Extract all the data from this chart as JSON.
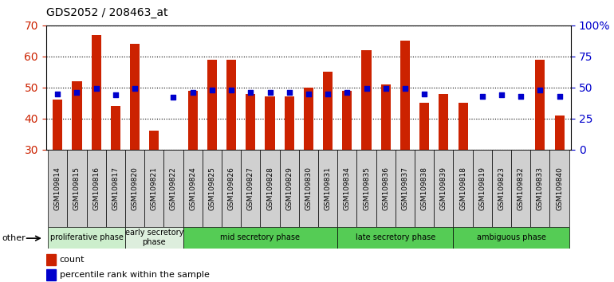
{
  "title": "GDS2052 / 208463_at",
  "samples": [
    "GSM109814",
    "GSM109815",
    "GSM109816",
    "GSM109817",
    "GSM109820",
    "GSM109821",
    "GSM109822",
    "GSM109824",
    "GSM109825",
    "GSM109826",
    "GSM109827",
    "GSM109828",
    "GSM109829",
    "GSM109830",
    "GSM109831",
    "GSM109834",
    "GSM109835",
    "GSM109836",
    "GSM109837",
    "GSM109838",
    "GSM109839",
    "GSM109818",
    "GSM109819",
    "GSM109823",
    "GSM109832",
    "GSM109833",
    "GSM109840"
  ],
  "count": [
    46,
    52,
    67,
    44,
    64,
    36,
    null,
    49,
    59,
    59,
    48,
    47,
    47,
    50,
    55,
    49,
    62,
    51,
    65,
    45,
    48,
    45,
    null,
    null,
    null,
    59,
    41
  ],
  "percentile": [
    45,
    46,
    49,
    44,
    49,
    null,
    42,
    46,
    48,
    48,
    46,
    46,
    46,
    45,
    45,
    46,
    49,
    49,
    49,
    45,
    null,
    null,
    43,
    44,
    43,
    48,
    43
  ],
  "phases": [
    {
      "label": "proliferative phase",
      "start": 0,
      "end": 4,
      "color": "#d4f0d4"
    },
    {
      "label": "early secretory\nphase",
      "start": 4,
      "end": 7,
      "color": "#e8f8e8"
    },
    {
      "label": "mid secretory phase",
      "start": 7,
      "end": 15,
      "color": "#66cc66"
    },
    {
      "label": "late secretory phase",
      "start": 15,
      "end": 21,
      "color": "#66cc66"
    },
    {
      "label": "ambiguous phase",
      "start": 21,
      "end": 27,
      "color": "#66cc66"
    }
  ],
  "ylim_left": [
    30,
    70
  ],
  "ylim_right": [
    0,
    100
  ],
  "bar_color": "#cc2200",
  "dot_color": "#0000cc",
  "grid_color": "#000000",
  "tick_color_left": "#cc2200",
  "tick_color_right": "#0000cc",
  "bar_width": 0.5,
  "dot_size": 20,
  "bg_tick_color": "#cccccc"
}
